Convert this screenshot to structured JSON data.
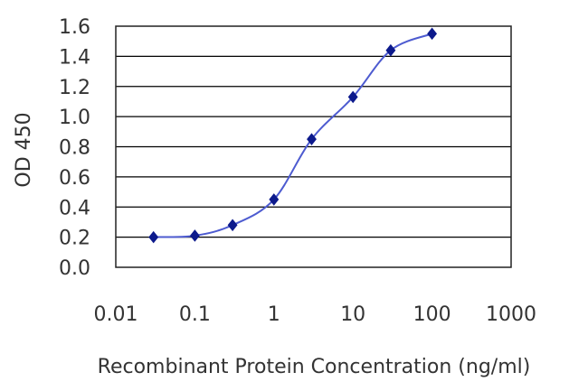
{
  "chart_data": {
    "type": "line",
    "title": "",
    "xlabel": "Recombinant Protein Concentration (ng/ml)",
    "ylabel": "OD 450",
    "x_scale": "log10",
    "xlim": [
      0.01,
      1000
    ],
    "ylim": [
      0.0,
      1.6
    ],
    "x_ticks": [
      0.01,
      0.1,
      1,
      10,
      100,
      1000
    ],
    "x_tick_labels": [
      "0.01",
      "0.1",
      "1",
      "10",
      "100",
      "1000"
    ],
    "y_ticks": [
      0.0,
      0.2,
      0.4,
      0.6,
      0.8,
      1.0,
      1.2,
      1.4,
      1.6
    ],
    "y_tick_labels": [
      "0.0",
      "0.2",
      "0.4",
      "0.6",
      "0.8",
      "1.0",
      "1.2",
      "1.4",
      "1.6"
    ],
    "grid": "horizontal",
    "legend": "none",
    "series": [
      {
        "x": [
          0.03,
          0.1,
          0.3,
          1,
          3,
          10,
          30,
          100
        ],
        "y": [
          0.2,
          0.21,
          0.28,
          0.45,
          0.85,
          1.13,
          1.44,
          1.55
        ],
        "marker": "diamond",
        "color": "#0d1a8c",
        "line_color": "#4d5bd0"
      }
    ]
  }
}
